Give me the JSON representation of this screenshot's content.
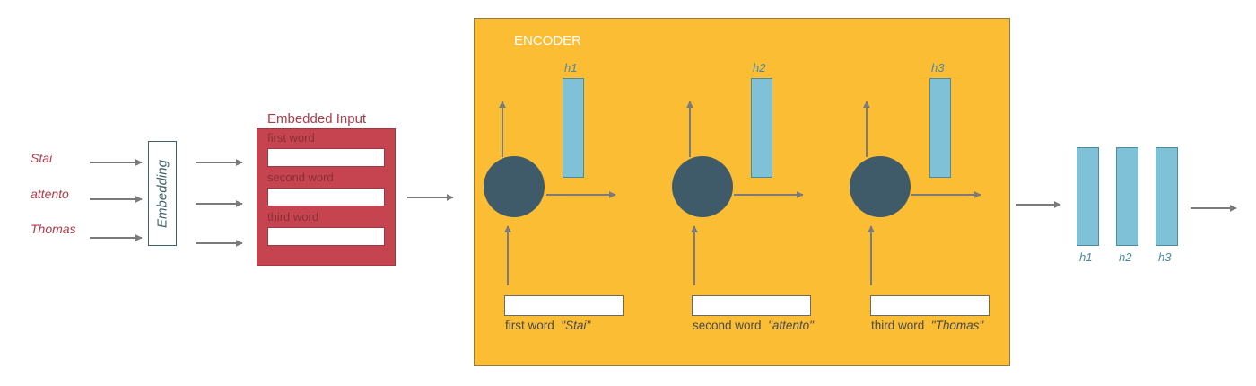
{
  "input_words": [
    "Stai",
    "attento",
    "Thomas"
  ],
  "embedding_label": "Embedding",
  "embedded_input": {
    "title": "Embedded Input",
    "rows": [
      "first word",
      "second word",
      "third word"
    ]
  },
  "encoder": {
    "title": "ENCODER",
    "steps": [
      {
        "hidden": "h1",
        "caption": "first word",
        "token": "\"Stai\""
      },
      {
        "hidden": "h2",
        "caption": "second word",
        "token": "\"attento\""
      },
      {
        "hidden": "h3",
        "caption": "third word",
        "token": "\"Thomas\""
      }
    ]
  },
  "outputs": [
    "h1",
    "h2",
    "h3"
  ],
  "colors": {
    "encoder_bg": "#fbbd33",
    "embedded_panel": "#c54450",
    "rnn_cell": "#3f5b69",
    "hidden_state": "#7fc1d7",
    "arrow": "#7b7b7b",
    "input_text": "#b03a48"
  }
}
